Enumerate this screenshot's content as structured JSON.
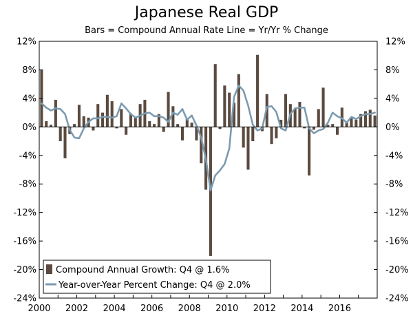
{
  "header": {
    "title": "Japanese Real GDP",
    "subtitle": "Bars = Compound Annual Rate      Line = Yr/Yr % Change"
  },
  "colors": {
    "bar": "#5a4a3f",
    "line": "#7b9bb0",
    "axis": "#000000"
  },
  "chart_data": {
    "type": "bar",
    "title": "Japanese Real GDP",
    "subtitle": "Bars = Compound Annual Rate      Line = Yr/Yr % Change",
    "xlabel": "",
    "ylabel": "",
    "ylim": [
      -24,
      12
    ],
    "xlim": [
      2000,
      2018
    ],
    "x_ticks": [
      "2000",
      "2002",
      "2004",
      "2006",
      "2008",
      "2010",
      "2012",
      "2014",
      "2016"
    ],
    "x_tick_values": [
      2000,
      2002,
      2004,
      2006,
      2008,
      2010,
      2012,
      2014,
      2016
    ],
    "y_ticks_left": [
      "12%",
      "8%",
      "4%",
      "0%",
      "-4%",
      "-8%",
      "-12%",
      "-16%",
      "-20%",
      "-24%"
    ],
    "y_ticks_right": [
      "12%",
      "8%",
      "4%",
      "0%",
      "-4%",
      "-8%",
      "-12%",
      "-16%",
      "-20%",
      "-24%"
    ],
    "y_tick_values": [
      12,
      8,
      4,
      0,
      -4,
      -8,
      -12,
      -16,
      -20,
      -24
    ],
    "start_year": 2000,
    "quarters_per_year": 4,
    "series": [
      {
        "name": "Compound Annual Growth: Q4 @ 1.6%",
        "type": "bar",
        "values": [
          8.0,
          0.8,
          0.3,
          3.8,
          -2.0,
          -4.4,
          -1.0,
          0.4,
          3.1,
          1.5,
          1.3,
          -0.5,
          3.2,
          2.0,
          4.5,
          3.6,
          -0.2,
          2.5,
          -1.1,
          1.9,
          1.4,
          3.2,
          3.8,
          0.8,
          0.4,
          1.8,
          -0.7,
          4.9,
          2.9,
          0.4,
          -1.9,
          1.1,
          0.6,
          -1.9,
          -5.1,
          -8.8,
          -18.1,
          8.8,
          -0.3,
          5.8,
          4.8,
          3.4,
          7.4,
          -2.9,
          -6.0,
          -2.0,
          10.1,
          -0.6,
          4.6,
          -2.4,
          -1.6,
          1.0,
          4.6,
          3.2,
          2.5,
          3.5,
          -0.2,
          -6.8,
          -0.4,
          2.5,
          5.5,
          0.3,
          0.4,
          -1.1,
          2.7,
          0.6,
          1.2,
          1.0,
          1.8,
          2.2,
          2.4,
          1.6
        ]
      },
      {
        "name": "Year-over-Year Percent Change: Q4 @ 2.0%",
        "type": "line",
        "values": [
          3.3,
          2.7,
          2.3,
          2.6,
          2.5,
          1.8,
          -0.4,
          -1.5,
          -1.6,
          -0.2,
          0.7,
          1.2,
          1.2,
          1.4,
          1.4,
          1.3,
          1.5,
          3.3,
          2.6,
          1.8,
          1.3,
          1.6,
          1.9,
          2.0,
          1.5,
          1.5,
          1.3,
          0.7,
          2.0,
          1.7,
          2.5,
          1.0,
          1.6,
          0.2,
          -1.5,
          -4.5,
          -8.9,
          -6.8,
          -6.1,
          -5.2,
          -3.0,
          4.2,
          5.8,
          5.1,
          3.0,
          0.3,
          -0.5,
          -0.2,
          2.8,
          2.9,
          2.1,
          -0.2,
          -0.5,
          1.8,
          2.6,
          2.7,
          2.7,
          -0.2,
          -0.9,
          -0.5,
          -0.3,
          0.6,
          2.0,
          1.5,
          1.2,
          0.6,
          1.4,
          1.1,
          1.5,
          1.8,
          1.8,
          2.0
        ]
      }
    ],
    "legend": {
      "placement": "bottom-left",
      "entries": [
        "Compound Annual Growth: Q4 @ 1.6%",
        "Year-over-Year Percent Change: Q4 @ 2.0%"
      ]
    },
    "grid": false
  }
}
